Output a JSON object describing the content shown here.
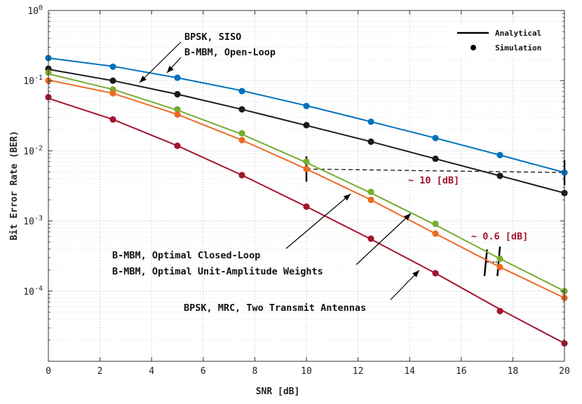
{
  "chart_data": {
    "type": "line",
    "xlabel": "SNR [dB]",
    "ylabel": "Bit Error Rate (BER)",
    "xlim": [
      0,
      20
    ],
    "ylim": [
      1e-05,
      1
    ],
    "yscale": "log",
    "grid": true,
    "xticks": [
      0,
      2,
      4,
      6,
      8,
      10,
      12,
      14,
      16,
      18,
      20
    ],
    "yticks": [
      {
        "value": 1,
        "base": "10",
        "exp": "0"
      },
      {
        "value": 0.1,
        "base": "10",
        "exp": "-1"
      },
      {
        "value": 0.01,
        "base": "10",
        "exp": "-2"
      },
      {
        "value": 0.001,
        "base": "10",
        "exp": "-3"
      },
      {
        "value": 0.0001,
        "base": "10",
        "exp": "-4"
      }
    ],
    "x": [
      0,
      2.5,
      5,
      7.5,
      10,
      12.5,
      15,
      17.5,
      20
    ],
    "series": [
      {
        "name": "BPSK, SISO",
        "color": "#0072bd",
        "style": "solid",
        "analytical": [
          0.21,
          0.16,
          0.11,
          0.072,
          0.044,
          0.026,
          0.0152,
          0.0087,
          0.0049
        ],
        "simulation": [
          0.21,
          0.158,
          0.11,
          0.071,
          0.0435,
          0.026,
          0.0152,
          0.0087,
          0.0049
        ]
      },
      {
        "name": "B-MBM, Open-Loop",
        "color": "#1a1a1a",
        "style": "solid",
        "analytical": [
          0.145,
          0.1,
          0.064,
          0.039,
          0.023,
          0.0135,
          0.0077,
          0.0044,
          0.0025
        ],
        "simulation": [
          0.148,
          0.1,
          0.064,
          0.039,
          0.0232,
          0.0135,
          0.0077,
          0.0044,
          0.0025
        ]
      },
      {
        "name": "B-MBM, Optimal Unit-Amplitude Weights",
        "color": "#77ac30",
        "style": "solid",
        "analytical": [
          0.125,
          0.075,
          0.038,
          0.0172,
          0.0068,
          0.0025,
          0.00088,
          0.00029,
          0.0001
        ],
        "simulation": [
          0.13,
          0.075,
          0.039,
          0.0178,
          0.007,
          0.0026,
          0.00091,
          0.00029,
          0.0001
        ]
      },
      {
        "name": "B-MBM, Optimal Closed-Loop",
        "color": "#ec6a21",
        "style": "solid",
        "analytical": [
          0.102,
          0.066,
          0.033,
          0.0142,
          0.0055,
          0.002,
          0.00066,
          0.00022,
          8e-05
        ],
        "simulation": [
          0.1,
          0.066,
          0.033,
          0.0142,
          0.0055,
          0.002,
          0.00066,
          0.00022,
          8e-05
        ]
      },
      {
        "name": "BPSK, MRC, Two Transmit Antennas",
        "color": "#a2142f",
        "style": "solid",
        "analytical": [
          0.056,
          0.028,
          0.0118,
          0.0045,
          0.0016,
          0.00055,
          0.00018,
          5.5e-05,
          1.8e-05
        ],
        "simulation": [
          0.058,
          0.028,
          0.0118,
          0.0045,
          0.0016,
          0.00056,
          0.00018,
          5.2e-05,
          1.8e-05
        ]
      }
    ],
    "legend": {
      "position": "top-right",
      "items": [
        {
          "label": "Analytical",
          "marker": "line"
        },
        {
          "label": "Simulation",
          "marker": "dot"
        }
      ]
    },
    "annotations": {
      "bpsk_siso": "BPSK, SISO",
      "bmbm_open_loop": "B-MBM, Open-Loop",
      "bmbm_closed_loop": "B-MBM, Optimal Closed-Loop",
      "bmbm_unit_amplitude": "B-MBM, Optimal Unit-Amplitude Weights",
      "bpsk_mrc": "BPSK, MRC, Two Transmit Antennas",
      "gap_10db": "~ 10 [dB]",
      "gap_06db": "~ 0.6 [dB]"
    }
  }
}
